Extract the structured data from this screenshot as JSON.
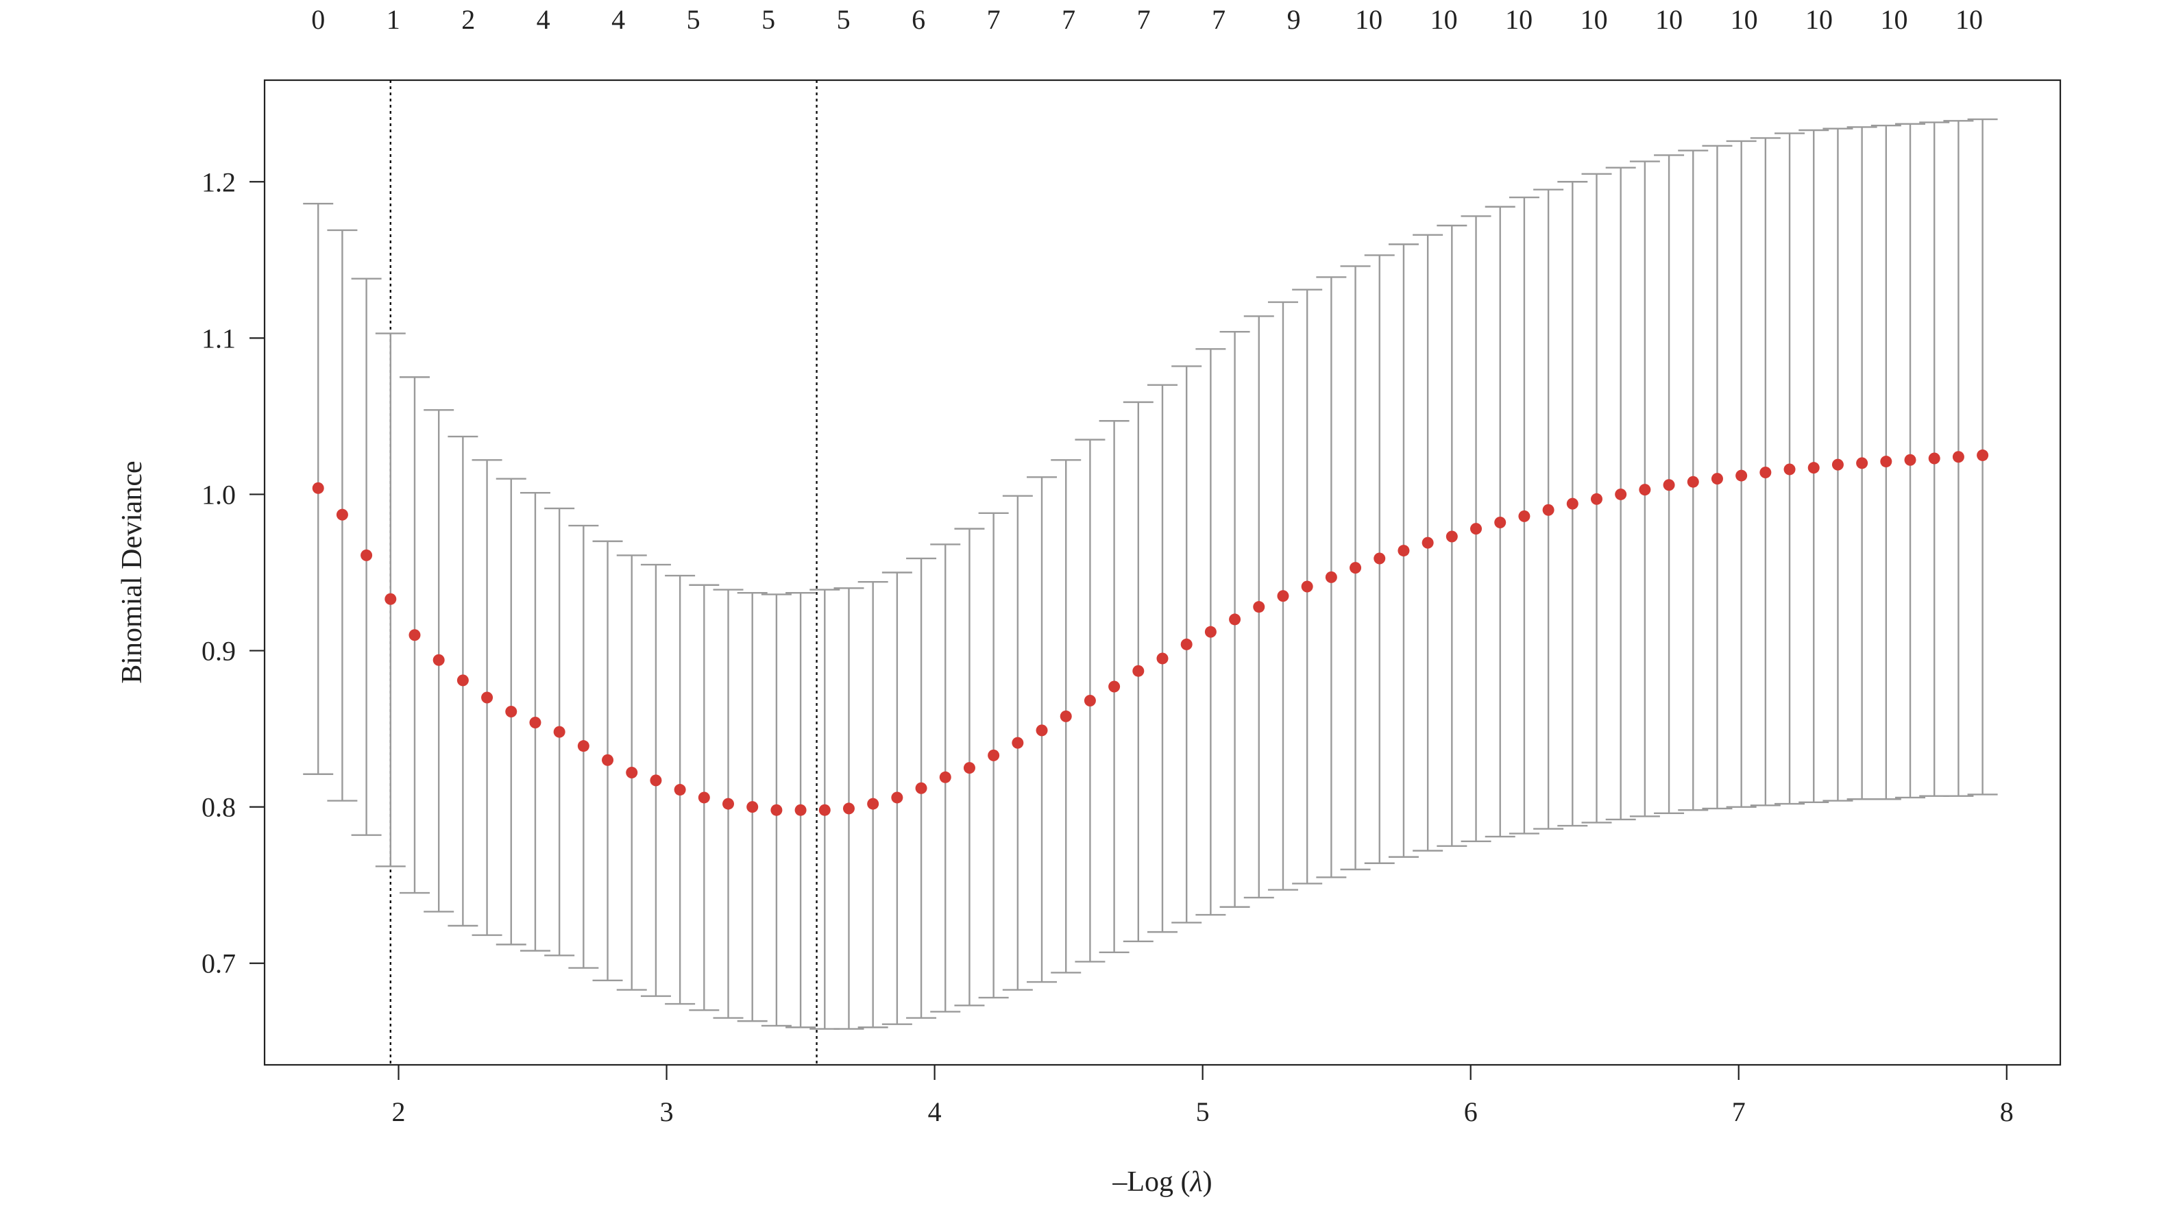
{
  "chart_data": {
    "type": "scatter",
    "xlabel_prefix": "–Log (",
    "xlabel_symbol": "λ",
    "xlabel_suffix": ")",
    "ylabel": "Binomial Deviance",
    "xlim": [
      1.5,
      8.2
    ],
    "ylim": [
      0.635,
      1.265
    ],
    "x_ticks": [
      2,
      3,
      4,
      5,
      6,
      7,
      8
    ],
    "y_ticks": [
      0.7,
      0.8,
      0.9,
      1.0,
      1.1,
      1.2
    ],
    "y_tick_labels": [
      "0.7",
      "0.8",
      "0.9",
      "1.0",
      "1.1",
      "1.2"
    ],
    "vlines": [
      1.97,
      3.56
    ],
    "top_labels": {
      "x": [
        1.7,
        1.98,
        2.26,
        2.54,
        2.82,
        3.1,
        3.38,
        3.66,
        3.94,
        4.22,
        4.5,
        4.78,
        5.06,
        5.34,
        5.62,
        5.9,
        6.18,
        6.46,
        6.74,
        7.02,
        7.3,
        7.58,
        7.86
      ],
      "labels": [
        "0",
        "1",
        "2",
        "4",
        "4",
        "5",
        "5",
        "5",
        "6",
        "7",
        "7",
        "7",
        "7",
        "9",
        "10",
        "10",
        "10",
        "10",
        "10",
        "10",
        "10",
        "10",
        "10"
      ]
    },
    "series": [
      {
        "x": [
          1.7,
          1.79,
          1.88,
          1.97,
          2.06,
          2.15,
          2.24,
          2.33,
          2.42,
          2.51,
          2.6,
          2.69,
          2.78,
          2.87,
          2.96,
          3.05,
          3.14,
          3.23,
          3.32,
          3.41,
          3.5,
          3.59,
          3.68,
          3.77,
          3.86,
          3.95,
          4.04,
          4.13,
          4.22,
          4.31,
          4.4,
          4.49,
          4.58,
          4.67,
          4.76,
          4.85,
          4.94,
          5.03,
          5.12,
          5.21,
          5.3,
          5.39,
          5.48,
          5.57,
          5.66,
          5.75,
          5.84,
          5.93,
          6.02,
          6.11,
          6.2,
          6.29,
          6.38,
          6.47,
          6.56,
          6.65,
          6.74,
          6.83,
          6.92,
          7.01,
          7.1,
          7.19,
          7.28,
          7.37,
          7.46,
          7.55,
          7.64,
          7.73,
          7.82,
          7.91
        ],
        "y": [
          1.004,
          0.987,
          0.961,
          0.933,
          0.91,
          0.894,
          0.881,
          0.87,
          0.861,
          0.854,
          0.848,
          0.839,
          0.83,
          0.822,
          0.817,
          0.811,
          0.806,
          0.802,
          0.8,
          0.798,
          0.798,
          0.798,
          0.799,
          0.802,
          0.806,
          0.812,
          0.819,
          0.825,
          0.833,
          0.841,
          0.849,
          0.858,
          0.868,
          0.877,
          0.887,
          0.895,
          0.904,
          0.912,
          0.92,
          0.928,
          0.935,
          0.941,
          0.947,
          0.953,
          0.959,
          0.964,
          0.969,
          0.973,
          0.978,
          0.982,
          0.986,
          0.99,
          0.994,
          0.997,
          1.0,
          1.003,
          1.006,
          1.008,
          1.01,
          1.012,
          1.014,
          1.016,
          1.017,
          1.019,
          1.02,
          1.021,
          1.022,
          1.023,
          1.024,
          1.025
        ],
        "upper": [
          1.186,
          1.169,
          1.138,
          1.103,
          1.075,
          1.054,
          1.037,
          1.022,
          1.01,
          1.001,
          0.991,
          0.98,
          0.97,
          0.961,
          0.955,
          0.948,
          0.942,
          0.939,
          0.937,
          0.936,
          0.937,
          0.939,
          0.94,
          0.944,
          0.95,
          0.959,
          0.968,
          0.978,
          0.988,
          0.999,
          1.011,
          1.022,
          1.035,
          1.047,
          1.059,
          1.07,
          1.082,
          1.093,
          1.104,
          1.114,
          1.123,
          1.131,
          1.139,
          1.146,
          1.153,
          1.16,
          1.166,
          1.172,
          1.178,
          1.184,
          1.19,
          1.195,
          1.2,
          1.205,
          1.209,
          1.213,
          1.217,
          1.22,
          1.223,
          1.226,
          1.228,
          1.231,
          1.233,
          1.234,
          1.235,
          1.236,
          1.237,
          1.238,
          1.239,
          1.24
        ],
        "lower": [
          0.821,
          0.804,
          0.782,
          0.762,
          0.745,
          0.733,
          0.724,
          0.718,
          0.712,
          0.708,
          0.705,
          0.697,
          0.689,
          0.683,
          0.679,
          0.674,
          0.67,
          0.665,
          0.663,
          0.66,
          0.659,
          0.658,
          0.658,
          0.659,
          0.661,
          0.665,
          0.669,
          0.673,
          0.678,
          0.683,
          0.688,
          0.694,
          0.701,
          0.707,
          0.714,
          0.72,
          0.726,
          0.731,
          0.736,
          0.742,
          0.747,
          0.751,
          0.755,
          0.76,
          0.764,
          0.768,
          0.772,
          0.775,
          0.778,
          0.781,
          0.783,
          0.786,
          0.788,
          0.79,
          0.792,
          0.794,
          0.796,
          0.798,
          0.799,
          0.8,
          0.801,
          0.802,
          0.803,
          0.804,
          0.805,
          0.805,
          0.806,
          0.807,
          0.807,
          0.808
        ],
        "color": "#d43a34",
        "error_color": "#9a9a9a"
      }
    ]
  }
}
